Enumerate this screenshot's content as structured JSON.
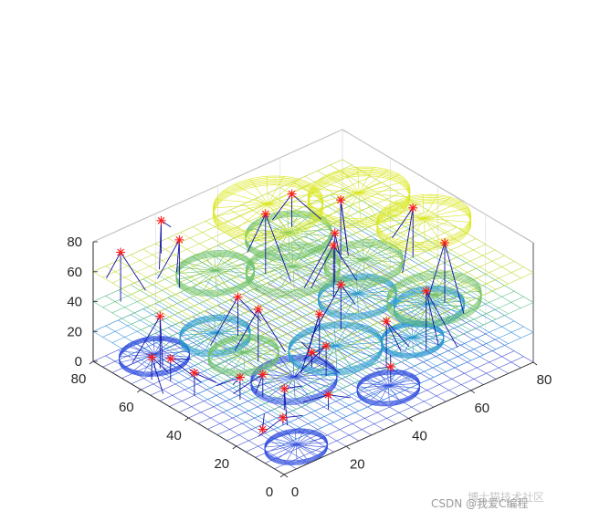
{
  "chart_data": {
    "type": "3d-mesh-scatter",
    "title": "",
    "xlabel": "",
    "ylabel": "",
    "zlabel": "",
    "xlim": [
      0,
      80
    ],
    "ylim": [
      0,
      80
    ],
    "zlim": [
      0,
      80
    ],
    "x_ticks": [
      "0",
      "20",
      "40",
      "60",
      "80"
    ],
    "y_ticks": [
      "0",
      "20",
      "40",
      "60",
      "80"
    ],
    "z_ticks": [
      "0",
      "20",
      "40",
      "60",
      "80"
    ],
    "grid": true,
    "box": true,
    "colormap": "parula",
    "colors": {
      "marker": "#ff1a1a",
      "stem": "#1212a6",
      "layer_low": "#2f6bff",
      "layer_mid": "#25b8b0",
      "layer_high": "#ffd21a"
    },
    "layers": [
      {
        "z": 0
      },
      {
        "z": 20
      },
      {
        "z": 40
      },
      {
        "z": 60
      }
    ],
    "discs": [
      {
        "x": 12,
        "y": 70,
        "z": 0,
        "r": 9,
        "h": 3
      },
      {
        "x": 10,
        "y": 8,
        "z": 0,
        "r": 8,
        "h": 3
      },
      {
        "x": 30,
        "y": 35,
        "z": 0,
        "r": 11,
        "h": 4
      },
      {
        "x": 45,
        "y": 15,
        "z": 0,
        "r": 8,
        "h": 3
      },
      {
        "x": 38,
        "y": 28,
        "z": 20,
        "r": 12,
        "h": 4
      },
      {
        "x": 58,
        "y": 45,
        "z": 20,
        "r": 10,
        "h": 4
      },
      {
        "x": 20,
        "y": 55,
        "z": 20,
        "r": 9,
        "h": 4
      },
      {
        "x": 68,
        "y": 28,
        "z": 20,
        "r": 9,
        "h": 4
      },
      {
        "x": 55,
        "y": 18,
        "z": 20,
        "r": 8,
        "h": 3
      },
      {
        "x": 10,
        "y": 30,
        "z": 40,
        "r": 9,
        "h": 4
      },
      {
        "x": 55,
        "y": 70,
        "z": 40,
        "r": 11,
        "h": 4
      },
      {
        "x": 30,
        "y": 68,
        "z": 40,
        "r": 10,
        "h": 4
      },
      {
        "x": 62,
        "y": 18,
        "z": 40,
        "r": 12,
        "h": 5
      },
      {
        "x": 45,
        "y": 55,
        "z": 40,
        "r": 12,
        "h": 5
      },
      {
        "x": 50,
        "y": 72,
        "z": 60,
        "r": 14,
        "h": 6
      },
      {
        "x": 70,
        "y": 60,
        "z": 60,
        "r": 13,
        "h": 6
      },
      {
        "x": 74,
        "y": 38,
        "z": 60,
        "r": 12,
        "h": 6
      },
      {
        "x": 60,
        "y": 45,
        "z": 40,
        "r": 10,
        "h": 5
      }
    ],
    "points": [
      {
        "x": 5,
        "y": 75,
        "z": 73
      },
      {
        "x": 20,
        "y": 70,
        "z": 72
      },
      {
        "x": 10,
        "y": 65,
        "z": 35
      },
      {
        "x": 25,
        "y": 52,
        "z": 46
      },
      {
        "x": 18,
        "y": 75,
        "z": 82
      },
      {
        "x": 40,
        "y": 60,
        "z": 80
      },
      {
        "x": 50,
        "y": 62,
        "z": 82
      },
      {
        "x": 58,
        "y": 52,
        "z": 80
      },
      {
        "x": 45,
        "y": 38,
        "z": 75
      },
      {
        "x": 50,
        "y": 44,
        "z": 73
      },
      {
        "x": 72,
        "y": 40,
        "z": 73
      },
      {
        "x": 73,
        "y": 28,
        "z": 60
      },
      {
        "x": 64,
        "y": 24,
        "z": 40
      },
      {
        "x": 52,
        "y": 25,
        "z": 30
      },
      {
        "x": 48,
        "y": 18,
        "z": 10
      },
      {
        "x": 38,
        "y": 32,
        "z": 20
      },
      {
        "x": 42,
        "y": 40,
        "z": 30
      },
      {
        "x": 5,
        "y": 62,
        "z": 15
      },
      {
        "x": 8,
        "y": 58,
        "z": 15
      },
      {
        "x": 8,
        "y": 48,
        "z": 15
      },
      {
        "x": 15,
        "y": 38,
        "z": 15
      },
      {
        "x": 20,
        "y": 35,
        "z": 15
      },
      {
        "x": 15,
        "y": 20,
        "z": 5
      },
      {
        "x": 20,
        "y": 26,
        "z": 14
      },
      {
        "x": 38,
        "y": 38,
        "z": 10
      },
      {
        "x": 30,
        "y": 50,
        "z": 35
      },
      {
        "x": 10,
        "y": 22,
        "z": 0
      },
      {
        "x": 28,
        "y": 18,
        "z": 10
      },
      {
        "x": 55,
        "y": 48,
        "z": 30
      }
    ]
  },
  "watermark": {
    "text": "CSDN @我爱C编程",
    "overlay": "博士猫技术社区"
  }
}
